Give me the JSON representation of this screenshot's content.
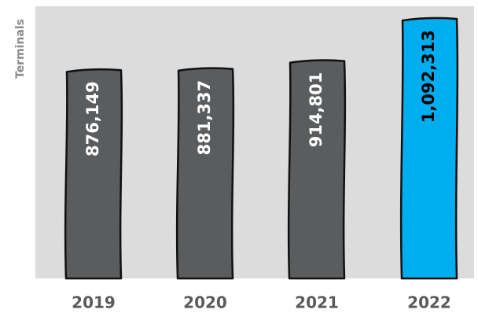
{
  "chart_data": {
    "type": "bar",
    "title": "",
    "xlabel": "",
    "ylabel": "Terminals",
    "categories": [
      "2019",
      "2020",
      "2021",
      "2022"
    ],
    "values": [
      876149,
      881337,
      914801,
      1092313
    ],
    "data_labels": [
      "876,149",
      "881,337",
      "914,801",
      "1,092,313"
    ],
    "ylim": [
      0,
      1092313
    ],
    "grid": false,
    "legend": "none",
    "colors": {
      "bars": [
        "#5a5c5e",
        "#5a5c5e",
        "#5a5c5e",
        "#00aeef"
      ],
      "labels": [
        "#ffffff",
        "#ffffff",
        "#ffffff",
        "#000000"
      ],
      "plot_background": "#dcdcdc",
      "outline": "#111111"
    }
  }
}
